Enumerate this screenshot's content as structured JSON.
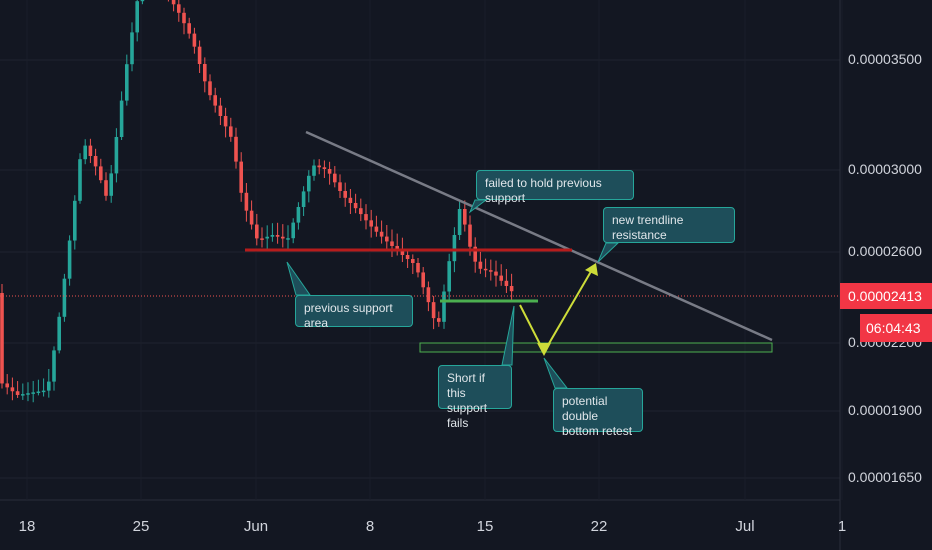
{
  "chart_data": {
    "type": "candlestick",
    "y_tick_labels": [
      "0.00003500",
      "0.00003000",
      "0.00002600",
      "0.00002200",
      "0.00001900",
      "0.00001650"
    ],
    "x_tick_labels": [
      "18",
      "25",
      "Jun",
      "8",
      "15",
      "22",
      "Jul",
      "1"
    ],
    "current_price_label": "0.00002413",
    "countdown_label": "06:04:43",
    "annotations": [
      "failed to hold previous support",
      "new trendline resistance",
      "previous support area",
      "Short if this support fails",
      "potential double bottom retest"
    ],
    "colors": {
      "up": "#26a69a",
      "down": "#ef5350",
      "background": "#131722",
      "resistance": "#b71c1c",
      "support": "#4caf50",
      "arrow": "#cddc39",
      "trendline": "#787b86"
    }
  },
  "ui": {
    "price_tag": "0.00002413",
    "timer_tag": "06:04:43",
    "callout_failed": "failed to hold previous support",
    "callout_trendline": "new trendline resistance",
    "callout_previous": "previous support area",
    "callout_short_1": "Short if this",
    "callout_short_2": "support fails",
    "callout_double_1": "potential double",
    "callout_double_2": "bottom retest"
  }
}
